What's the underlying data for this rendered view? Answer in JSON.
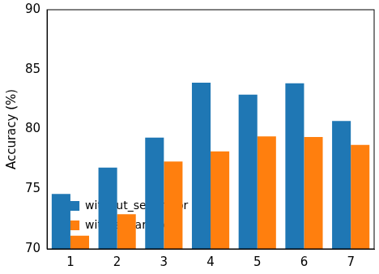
{
  "chart_data": {
    "type": "bar",
    "y_label": "Accuracy (%)",
    "categories": [
      "1",
      "2",
      "3",
      "4",
      "5",
      "6",
      "7"
    ],
    "series": [
      {
        "name": "without_separator",
        "color": "#1f77b4",
        "values": [
          74.6,
          76.8,
          79.3,
          83.9,
          82.9,
          83.85,
          80.7
        ]
      },
      {
        "name": "with_separator",
        "color": "#ff7f0e",
        "values": [
          71.1,
          72.9,
          77.3,
          78.15,
          79.4,
          79.35,
          78.7
        ]
      }
    ],
    "ylim": [
      70,
      90
    ],
    "yticks": [
      70,
      75,
      80,
      85,
      90
    ],
    "grid": false,
    "legend": "upper right"
  }
}
